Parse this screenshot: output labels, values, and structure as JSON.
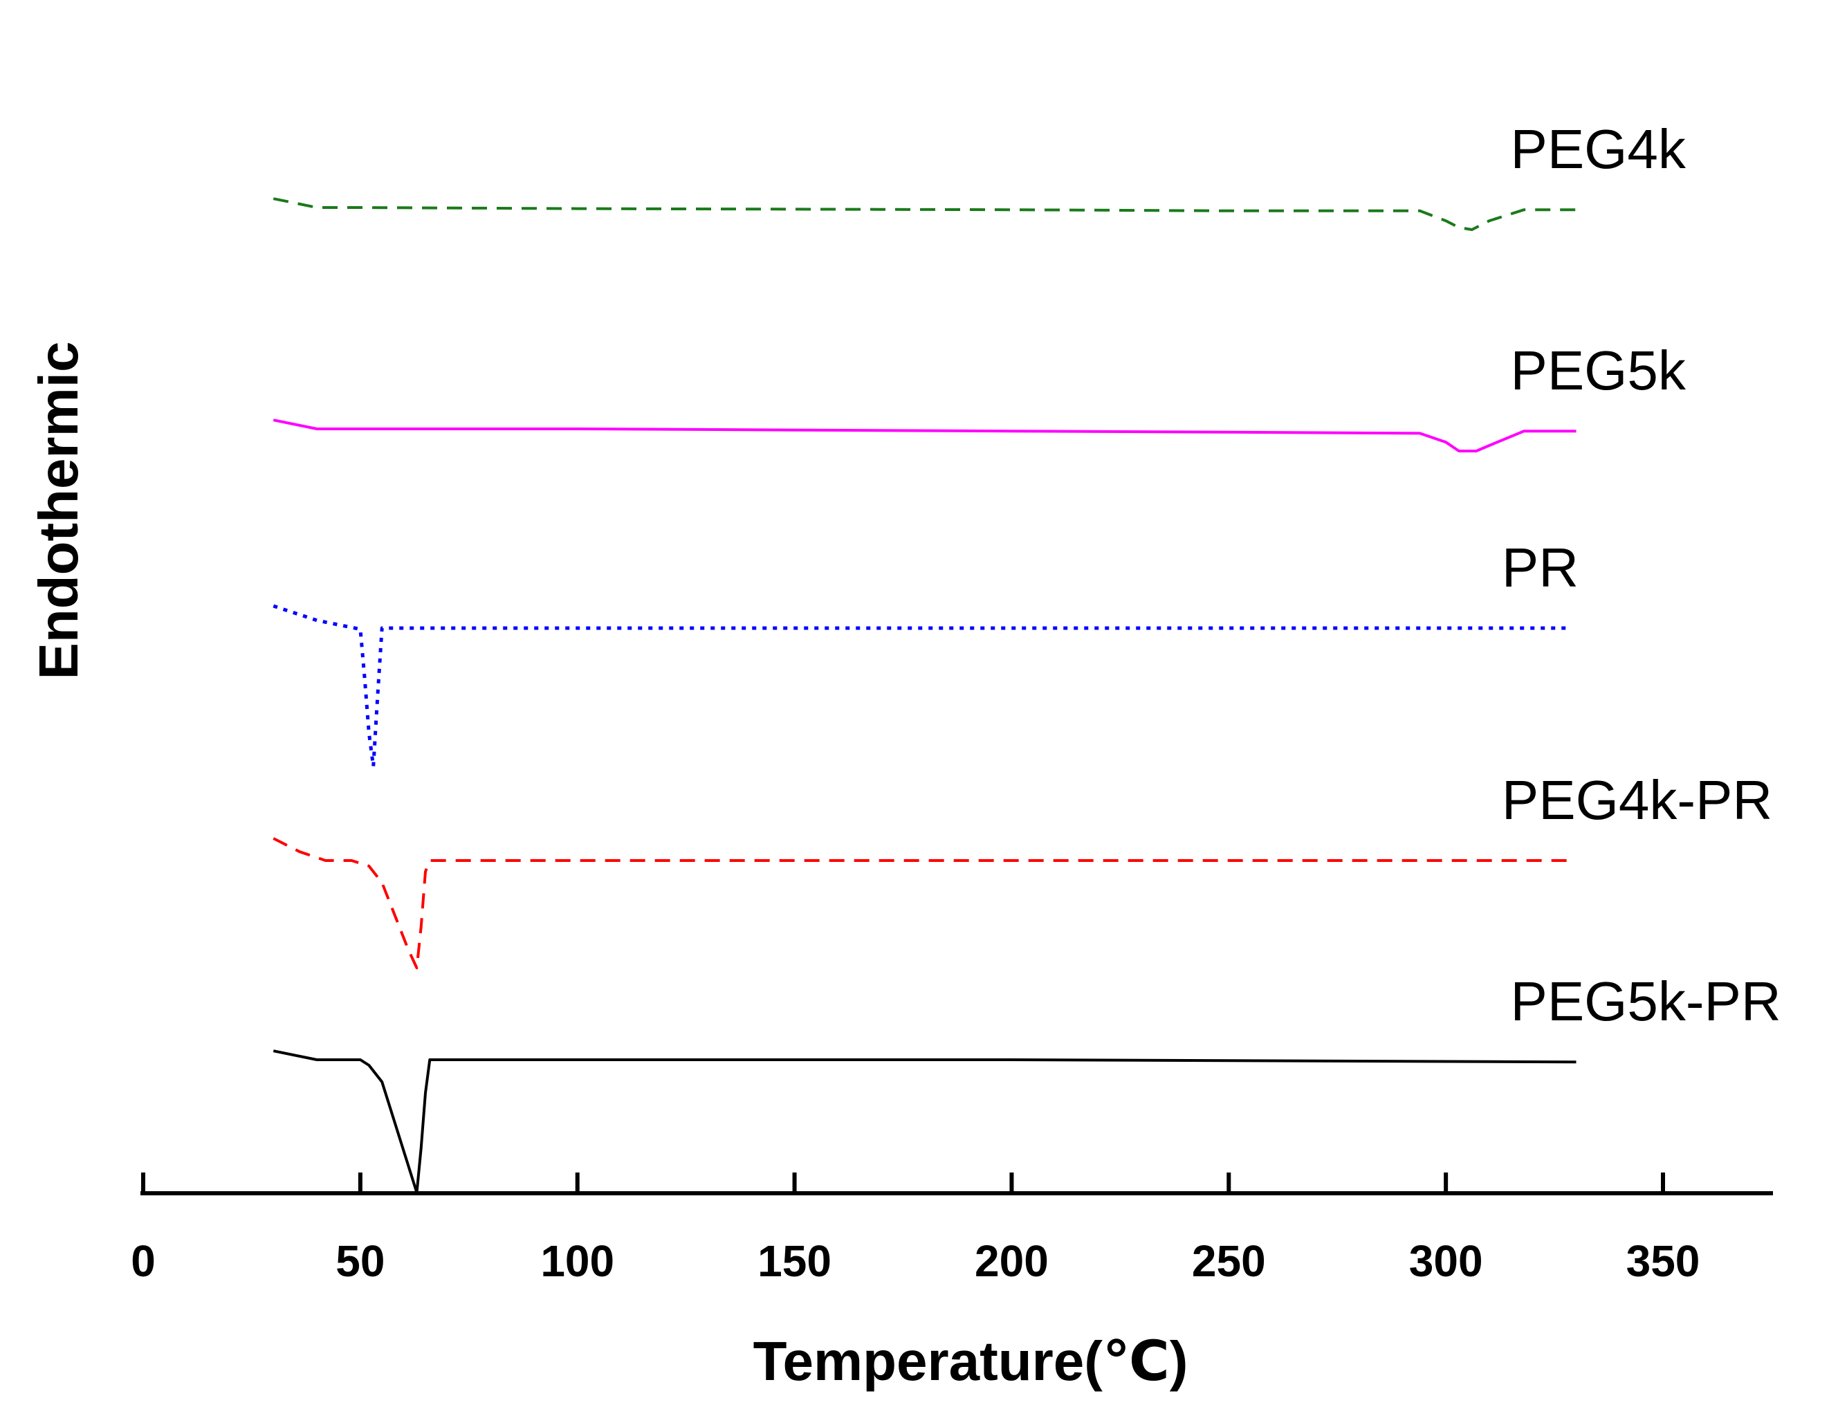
{
  "chart_data": {
    "type": "line",
    "title": "",
    "xlabel": "Temperature(℃)",
    "ylabel": "Endothermic",
    "xlim": [
      0,
      375
    ],
    "xticks": [
      0,
      50,
      100,
      150,
      200,
      250,
      300,
      350
    ],
    "y_ticks_shown": false,
    "grid": false,
    "series": [
      {
        "name": "PEG4k",
        "color": "#1a7a1a",
        "style": "dashed",
        "offset": 5.0,
        "x": [
          30,
          40,
          50,
          100,
          200,
          250,
          294,
          300,
          303,
          306,
          310,
          318,
          330
        ],
        "y": [
          0.08,
          0.0,
          0.0,
          -0.01,
          -0.02,
          -0.03,
          -0.03,
          -0.12,
          -0.18,
          -0.2,
          -0.12,
          -0.02,
          -0.02
        ]
      },
      {
        "name": "PEG5k",
        "color": "#ff00ff",
        "style": "solid",
        "offset": 3.0,
        "x": [
          30,
          40,
          50,
          100,
          200,
          250,
          294,
          300,
          303,
          307,
          310,
          318,
          330
        ],
        "y": [
          0.08,
          0.0,
          0.0,
          0.0,
          -0.02,
          -0.03,
          -0.04,
          -0.12,
          -0.2,
          -0.2,
          -0.15,
          -0.02,
          -0.02
        ]
      },
      {
        "name": "PR",
        "color": "#0000ff",
        "style": "dotted",
        "offset": 1.2,
        "x": [
          30,
          40,
          45,
          50,
          51,
          52,
          53,
          54,
          55,
          100,
          200,
          300,
          328
        ],
        "y": [
          0.2,
          0.07,
          0.03,
          -0.01,
          -0.45,
          -0.95,
          -1.25,
          -0.6,
          0.0,
          0.0,
          0.0,
          0.0,
          0.0
        ]
      },
      {
        "name": "PEG4k-PR",
        "color": "#ff0000",
        "style": "dashed",
        "offset": -0.9,
        "x": [
          30,
          36,
          42,
          48,
          52,
          55,
          58,
          61,
          63,
          64,
          65,
          66,
          100,
          200,
          300,
          328
        ],
        "y": [
          0.2,
          0.08,
          0.0,
          0.0,
          -0.05,
          -0.2,
          -0.5,
          -0.8,
          -0.97,
          -0.6,
          -0.1,
          0.0,
          0.0,
          0.0,
          0.0,
          0.0
        ]
      },
      {
        "name": "PEG5k-PR",
        "color": "#000000",
        "style": "solid",
        "offset": -2.7,
        "x": [
          30,
          40,
          50,
          52,
          55,
          63,
          64,
          65,
          66,
          100,
          200,
          330
        ],
        "y": [
          0.08,
          0.0,
          0.0,
          -0.05,
          -0.2,
          -1.2,
          -0.8,
          -0.3,
          0.0,
          0.0,
          0.0,
          -0.02
        ]
      }
    ]
  }
}
